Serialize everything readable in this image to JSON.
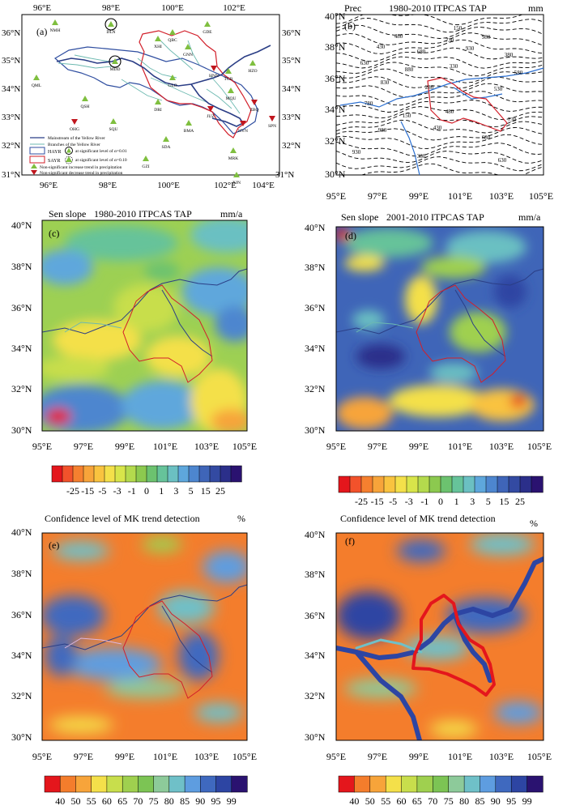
{
  "panels": {
    "a": {
      "label": "(a)",
      "lon_ticks": [
        "96°E",
        "98°E",
        "100°E",
        "102°E"
      ],
      "lon_ticks_bottom": [
        "96°E",
        "98°E",
        "100°E",
        "102°E",
        "104°E"
      ],
      "lat_ticks_left": [
        "36°N",
        "35°N",
        "34°N",
        "33°N",
        "32°N",
        "31°N"
      ],
      "lat_ticks_right": [
        "36°N",
        "35°N",
        "34°N",
        "33°N",
        "32°N",
        "31°N"
      ],
      "stations": [
        {
          "name": "NMH",
          "trend": "increase",
          "sig": ""
        },
        {
          "name": "DLN",
          "trend": "increase",
          "sig": "0.01"
        },
        {
          "name": "QML",
          "trend": "increase",
          "sig": ""
        },
        {
          "name": "MDD",
          "trend": "increase",
          "sig": "0.01"
        },
        {
          "name": "XHI",
          "trend": "increase",
          "sig": ""
        },
        {
          "name": "QBC",
          "trend": "increase",
          "sig": ""
        },
        {
          "name": "GDE",
          "trend": "increase",
          "sig": ""
        },
        {
          "name": "GNN",
          "trend": "increase",
          "sig": ""
        },
        {
          "name": "TGR",
          "trend": "increase",
          "sig": ""
        },
        {
          "name": "HZO",
          "trend": "increase",
          "sig": ""
        },
        {
          "name": "HNN",
          "trend": "decrease",
          "sig": ""
        },
        {
          "name": "GLO",
          "trend": "increase",
          "sig": ""
        },
        {
          "name": "MQU",
          "trend": "increase",
          "sig": ""
        },
        {
          "name": "ZBQ",
          "trend": "decrease",
          "sig": ""
        },
        {
          "name": "QSH",
          "trend": "increase",
          "sig": ""
        },
        {
          "name": "DRI",
          "trend": "increase",
          "sig": ""
        },
        {
          "name": "JUZ",
          "trend": "decrease",
          "sig": ""
        },
        {
          "name": "OHG",
          "trend": "decrease",
          "sig": ""
        },
        {
          "name": "SQU",
          "trend": "increase",
          "sig": ""
        },
        {
          "name": "BMA",
          "trend": "increase",
          "sig": ""
        },
        {
          "name": "HYN",
          "trend": "decrease",
          "sig": ""
        },
        {
          "name": "SPN",
          "trend": "decrease",
          "sig": ""
        },
        {
          "name": "SDA",
          "trend": "increase",
          "sig": ""
        },
        {
          "name": "MRK",
          "trend": "increase",
          "sig": ""
        },
        {
          "name": "GZI",
          "trend": "increase",
          "sig": ""
        },
        {
          "name": "XJN",
          "trend": "increase",
          "sig": ""
        }
      ],
      "legend": [
        "Mainstream of the Yellow River",
        "Branches of the Yellow River",
        "HAYR",
        "at significant level of α=0.01",
        "SAYR",
        "at significant level of α=0.10",
        "Non-significant increase trend in precipitation",
        "Non-significant decrease trend in precipitation"
      ]
    },
    "b": {
      "label": "(b)",
      "var": "Prec",
      "title": "1980-2010 ITPCAS TAP",
      "unit": "mm",
      "contour_labels": [
        "150",
        "280",
        "330",
        "380",
        "430",
        "480",
        "530",
        "580",
        "630",
        "680",
        "730",
        "780",
        "830",
        "880",
        "930",
        "980"
      ],
      "lat_ticks": [
        "40°N",
        "38°N",
        "36°N",
        "34°N",
        "32°N",
        "30°N"
      ],
      "lon_ticks": [
        "95°E",
        "97°E",
        "99°E",
        "101°E",
        "103°E",
        "105°E"
      ]
    },
    "c": {
      "label": "(c)",
      "var": "Sen slope",
      "title": "1980-2010 ITPCAS TAP",
      "unit": "mm/a",
      "lat_ticks": [
        "40°N",
        "38°N",
        "36°N",
        "34°N",
        "32°N",
        "30°N"
      ],
      "lon_ticks": [
        "95°E",
        "97°E",
        "99°E",
        "101°E",
        "103°E",
        "105°E"
      ]
    },
    "d": {
      "label": "(d)",
      "var": "Sen slope",
      "title": "2001-2010 ITPCAS TAP",
      "unit": "mm/a",
      "lat_ticks": [
        "40°N",
        "38°N",
        "36°N",
        "34°N",
        "32°N",
        "30°N"
      ],
      "lon_ticks": [
        "95°E",
        "97°E",
        "99°E",
        "101°E",
        "103°E",
        "105°E"
      ]
    },
    "e": {
      "label": "(e)",
      "title": "Confidence level of MK trend detection",
      "unit": "%",
      "lat_ticks": [
        "40°N",
        "38°N",
        "36°N",
        "34°N",
        "32°N",
        "30°N"
      ],
      "lon_ticks": [
        "95°E",
        "97°E",
        "99°E",
        "101°E",
        "103°E",
        "105°E"
      ]
    },
    "f": {
      "label": "(f)",
      "title": "Confidence level of MK trend detection",
      "unit": "%",
      "lat_ticks": [
        "40°N",
        "38°N",
        "36°N",
        "34°N",
        "32°N",
        "30°N"
      ],
      "lon_ticks": [
        "95°E",
        "97°E",
        "99°E",
        "101°E",
        "103°E",
        "105°E"
      ]
    }
  },
  "colorbars": {
    "sen": {
      "labels": [
        "-25",
        "-15",
        "-5",
        "-3",
        "-1",
        "0",
        "1",
        "3",
        "5",
        "15",
        "25"
      ],
      "colors": [
        "#e4161c",
        "#f2522b",
        "#f5802f",
        "#f7a43a",
        "#f9c33f",
        "#f4e04a",
        "#d8e54a",
        "#b4da4d",
        "#8cc94f",
        "#6cc26f",
        "#66c39a",
        "#6bc0c2",
        "#5ea7dc",
        "#4d86cf",
        "#3f65b8",
        "#334aa2",
        "#2b2f8a",
        "#2a1270"
      ]
    },
    "conf": {
      "labels": [
        "40",
        "50",
        "55",
        "60",
        "65",
        "70",
        "75",
        "80",
        "85",
        "90",
        "95",
        "99"
      ],
      "colors": [
        "#e4161c",
        "#f47d2c",
        "#f7a43a",
        "#f4e04a",
        "#c8de4c",
        "#9fd04f",
        "#7cc454",
        "#8dca9a",
        "#6fc0c8",
        "#5e9de0",
        "#3f69bf",
        "#2d45a3",
        "#2a1270"
      ]
    }
  },
  "colors": {
    "mainstream": "#2b3e86",
    "branches": "#6cb9b0",
    "hayr": "#2f4ea0",
    "sayr": "#d21f2a",
    "increase": "#7fbf3f",
    "decrease": "#c0161e"
  }
}
